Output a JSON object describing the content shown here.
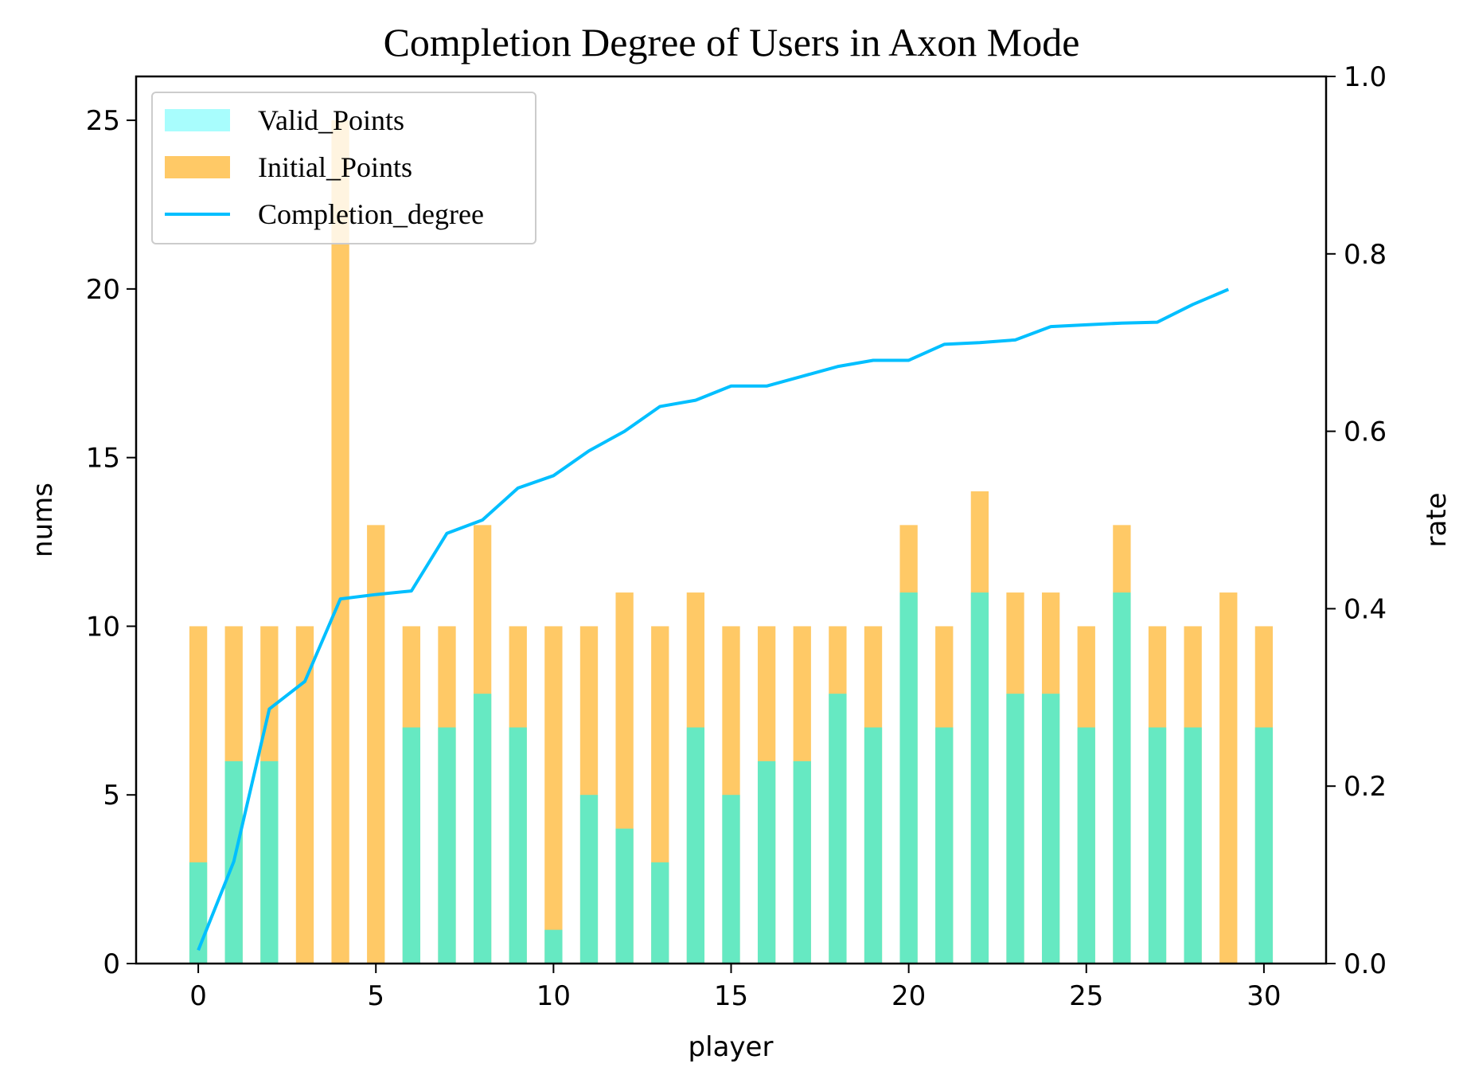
{
  "chart_data": {
    "type": "bar",
    "title": "Completion Degree of Users in Axon Mode",
    "xlabel": "player",
    "ylabel": "nums",
    "y2label": "rate",
    "xlim": [
      -1.75,
      31.75
    ],
    "ylim": [
      0,
      26.3
    ],
    "y2lim": [
      0,
      1.0
    ],
    "xticks": [
      0,
      5,
      10,
      15,
      20,
      25,
      30
    ],
    "yticks": [
      0,
      5,
      10,
      15,
      20,
      25
    ],
    "y2ticks": [
      0.0,
      0.2,
      0.4,
      0.6,
      0.8,
      1.0
    ],
    "y2tick_labels": [
      "0.0",
      "0.2",
      "0.4",
      "0.6",
      "0.8",
      "1.0"
    ],
    "grid": false,
    "legend_position": "top-left",
    "x": [
      0,
      1,
      2,
      3,
      4,
      5,
      6,
      7,
      8,
      9,
      10,
      11,
      12,
      13,
      14,
      15,
      16,
      17,
      18,
      19,
      20,
      21,
      22,
      23,
      24,
      25,
      26,
      27,
      28,
      29,
      30
    ],
    "series": [
      {
        "name": "Initial_Points",
        "kind": "bar",
        "color": "#FFA500",
        "opacity": 0.6,
        "values": [
          10,
          10,
          10,
          10,
          25,
          13,
          10,
          10,
          13,
          10,
          10,
          10,
          11,
          10,
          11,
          10,
          10,
          10,
          10,
          10,
          13,
          10,
          14,
          11,
          11,
          10,
          13,
          10,
          10,
          11,
          10
        ]
      },
      {
        "name": "Valid_Points",
        "kind": "bar",
        "color": "#00FFFF",
        "opacity": 0.6,
        "legend_color": "#6EFBFB",
        "values": [
          3,
          6,
          6,
          0,
          0,
          0,
          7,
          7,
          8,
          7,
          1,
          5,
          4,
          3,
          7,
          5,
          6,
          6,
          8,
          7,
          11,
          7,
          11,
          8,
          8,
          7,
          11,
          7,
          7,
          0,
          7
        ]
      },
      {
        "name": "Completion_degree",
        "kind": "line",
        "axis": "right",
        "color": "#00BFFF",
        "x": [
          0,
          1,
          2,
          3,
          4,
          5,
          6,
          7,
          8,
          9,
          10,
          11,
          12,
          13,
          14,
          15,
          16,
          17,
          18,
          19,
          20,
          21,
          22,
          23,
          24,
          25,
          26,
          27,
          28,
          29
        ],
        "values": [
          0.015,
          0.115,
          0.287,
          0.318,
          0.411,
          0.416,
          0.42,
          0.485,
          0.5,
          0.536,
          0.55,
          0.578,
          0.6,
          0.628,
          0.635,
          0.651,
          0.651,
          0.662,
          0.673,
          0.68,
          0.68,
          0.698,
          0.7,
          0.703,
          0.718,
          0.72,
          0.722,
          0.723,
          0.743,
          0.76
        ]
      }
    ],
    "overlap_color": "#C3CA6B"
  }
}
